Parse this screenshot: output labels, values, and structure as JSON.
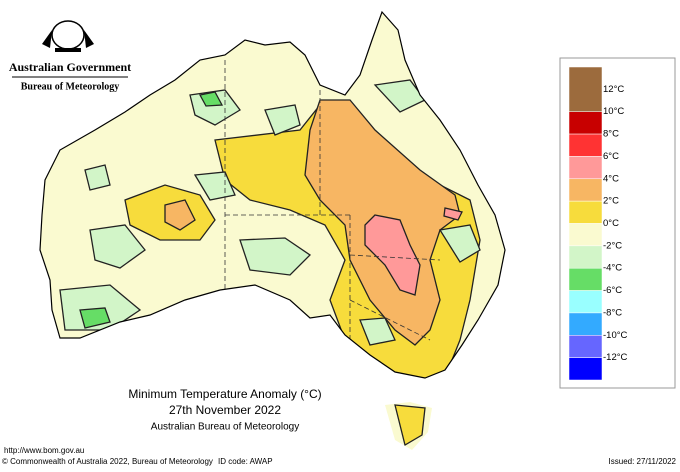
{
  "header": {
    "government": "Australian Government",
    "bureau": "Bureau of Meteorology"
  },
  "title": {
    "line1": "Minimum Temperature Anomaly (°C)",
    "line2": "27th November 2022",
    "line3": "Australian Bureau of Meteorology"
  },
  "legend": {
    "colors": [
      "#9c6b3d",
      "#c80000",
      "#ff3333",
      "#ff9999",
      "#f7b663",
      "#f7dc3c",
      "#fafad0",
      "#d2f5c8",
      "#66dd66",
      "#99ffff",
      "#33aaff",
      "#6666ff",
      "#0000ff"
    ],
    "labels": [
      "12°C",
      "10°C",
      "8°C",
      "6°C",
      "4°C",
      "2°C",
      "0°C",
      "-2°C",
      "-4°C",
      "-6°C",
      "-8°C",
      "-10°C",
      "-12°C"
    ]
  },
  "footer": {
    "url": "http://www.bom.gov.au",
    "copyright": "© Commonwealth of Australia 2022, Bureau of Meteorology",
    "id_code": "ID code: AWAP",
    "issued": "Issued: 27/11/2022"
  }
}
